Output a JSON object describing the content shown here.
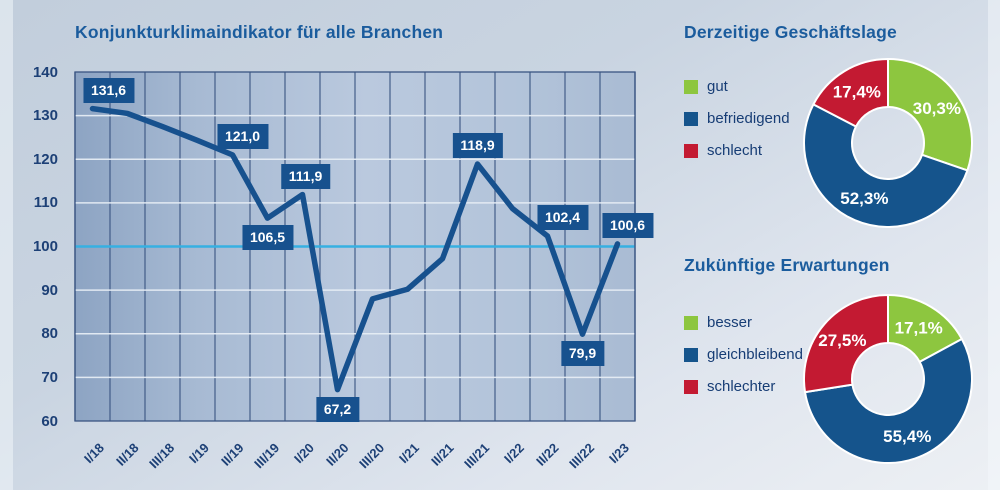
{
  "chart_data": [
    {
      "type": "line",
      "title": "Konjunkturklimaindikator für alle Branchen",
      "categories": [
        "I/18",
        "II/18",
        "III/18",
        "I/19",
        "II/19",
        "III/19",
        "I/20",
        "II/20",
        "III/20",
        "I/21",
        "II/21",
        "III/21",
        "I/22",
        "II/22",
        "III/22",
        "I/23"
      ],
      "values": [
        131.6,
        130.5,
        127.5,
        124.3,
        121.0,
        106.5,
        111.9,
        67.2,
        88.0,
        90.2,
        97.2,
        118.9,
        108.7,
        102.4,
        79.9,
        100.6
      ],
      "point_labels": [
        {
          "index": 0,
          "label": "131,6",
          "side": "above",
          "dx": 16
        },
        {
          "index": 4,
          "label": "121,0",
          "side": "above",
          "dx": 10
        },
        {
          "index": 5,
          "label": "106,5",
          "side": "below",
          "dx": 0
        },
        {
          "index": 6,
          "label": "111,9",
          "side": "above",
          "dx": 3
        },
        {
          "index": 7,
          "label": "67,2",
          "side": "below",
          "dx": 0
        },
        {
          "index": 11,
          "label": "118,9",
          "side": "above",
          "dx": 0
        },
        {
          "index": 13,
          "label": "102,4",
          "side": "above",
          "dx": 15
        },
        {
          "index": 14,
          "label": "79,9",
          "side": "below",
          "dx": 0
        },
        {
          "index": 15,
          "label": "100,6",
          "side": "above",
          "dx": 10
        }
      ],
      "ylim": [
        60,
        140
      ],
      "yticks": [
        140,
        130,
        120,
        110,
        100,
        90,
        80,
        70,
        60
      ],
      "reference_line": 100,
      "grid": "on",
      "x_labels_rotated": true,
      "line_color": "#17518e",
      "reference_line_color": "#36b0e2",
      "label_box_color": "#17518e"
    },
    {
      "type": "pie",
      "title": "Derzeitige Geschäftslage",
      "legend_position": "left",
      "slices": [
        {
          "legend": "gut",
          "label": "30,3%",
          "value": 30.3,
          "color": "#8dc63f"
        },
        {
          "legend": "befriedigend",
          "label": "52,3%",
          "value": 52.3,
          "color": "#15548c"
        },
        {
          "legend": "schlecht",
          "label": "17,4%",
          "value": 17.4,
          "color": "#c31a32"
        }
      ]
    },
    {
      "type": "pie",
      "title": "Zukünftige Erwartungen",
      "legend_position": "left",
      "slices": [
        {
          "legend": "besser",
          "label": "17,1%",
          "value": 17.1,
          "color": "#8dc63f"
        },
        {
          "legend": "gleichbleibend",
          "label": "55,4%",
          "value": 55.4,
          "color": "#15548c"
        },
        {
          "legend": "schlechter",
          "label": "27,5%",
          "value": 27.5,
          "color": "#c31a32"
        }
      ]
    }
  ]
}
